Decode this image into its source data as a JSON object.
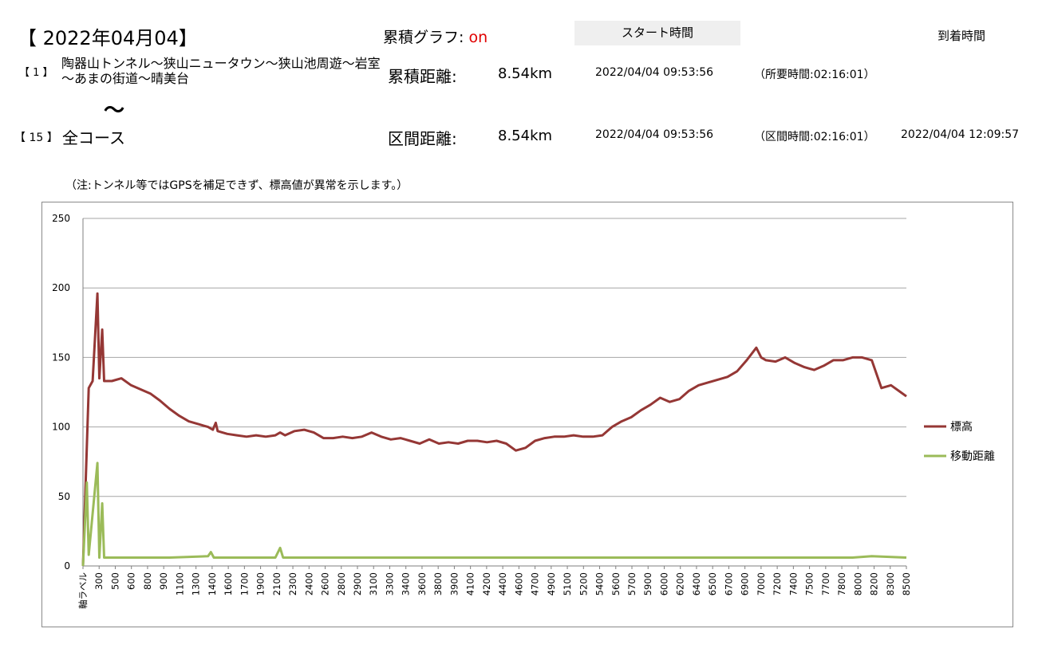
{
  "header": {
    "date": "【 2022年04月04】",
    "graph_mode_label": "累積グラフ: ",
    "graph_mode_value": "on",
    "start_time_label": "スタート時間",
    "arrival_time_label": "到着時間"
  },
  "route": {
    "first_no": "【 1 】",
    "first_name": "陶器山トンネル～狭山ニュータウン～狭山池周遊～岩室～あまの街道～晴美台",
    "tilde": "～",
    "last_no": "【 15 】",
    "last_name": "全コース"
  },
  "cumulative": {
    "label": "累積距離:",
    "distance": "8.54km",
    "start": "2022/04/04 09:53:56",
    "duration": "（所要時間:02:16:01）"
  },
  "section": {
    "label": "区間距離:",
    "distance": "8.54km",
    "start": "2022/04/04 09:53:56",
    "duration": "（区間時間:02:16:01）",
    "arrival": "2022/04/04 12:09:57"
  },
  "note": "（注:トンネル等ではGPSを補足できず、標高値が異常を示します。）",
  "colors": {
    "elevation": "#953735",
    "movement": "#9bbb59",
    "grid": "#a6a6a6",
    "highlight": "#e00000"
  },
  "chart_data": {
    "type": "line",
    "ylim": [
      0,
      250
    ],
    "yticks": [
      "0",
      "50",
      "100",
      "150",
      "200",
      "250"
    ],
    "xticks": [
      "軸ラベル",
      "300",
      "500",
      "600",
      "800",
      "900",
      "1100",
      "1300",
      "1400",
      "1600",
      "1700",
      "1900",
      "2100",
      "2300",
      "2400",
      "2600",
      "2800",
      "2900",
      "3100",
      "3300",
      "3400",
      "3600",
      "3800",
      "3900",
      "4100",
      "4200",
      "4400",
      "4600",
      "4700",
      "4900",
      "5100",
      "5200",
      "5400",
      "5600",
      "5700",
      "5900",
      "6000",
      "6200",
      "6400",
      "6500",
      "6700",
      "6900",
      "7000",
      "7200",
      "7400",
      "7500",
      "7700",
      "7800",
      "8000",
      "8200",
      "8300",
      "8500"
    ],
    "legend_position": "right",
    "grid": true,
    "series": [
      {
        "name": "標高",
        "points": [
          [
            0,
            0
          ],
          [
            60,
            128
          ],
          [
            100,
            133
          ],
          [
            150,
            196
          ],
          [
            170,
            135
          ],
          [
            200,
            170
          ],
          [
            220,
            133
          ],
          [
            300,
            133
          ],
          [
            400,
            135
          ],
          [
            500,
            130
          ],
          [
            600,
            127
          ],
          [
            700,
            124
          ],
          [
            800,
            119
          ],
          [
            900,
            113
          ],
          [
            1000,
            108
          ],
          [
            1100,
            104
          ],
          [
            1200,
            102
          ],
          [
            1300,
            100
          ],
          [
            1350,
            98
          ],
          [
            1380,
            103
          ],
          [
            1400,
            97
          ],
          [
            1500,
            95
          ],
          [
            1600,
            94
          ],
          [
            1700,
            93
          ],
          [
            1800,
            94
          ],
          [
            1900,
            93
          ],
          [
            2000,
            94
          ],
          [
            2050,
            96
          ],
          [
            2100,
            94
          ],
          [
            2200,
            97
          ],
          [
            2300,
            98
          ],
          [
            2400,
            96
          ],
          [
            2500,
            92
          ],
          [
            2600,
            92
          ],
          [
            2700,
            93
          ],
          [
            2800,
            92
          ],
          [
            2900,
            93
          ],
          [
            3000,
            96
          ],
          [
            3100,
            93
          ],
          [
            3200,
            91
          ],
          [
            3300,
            92
          ],
          [
            3400,
            90
          ],
          [
            3500,
            88
          ],
          [
            3600,
            91
          ],
          [
            3700,
            88
          ],
          [
            3800,
            89
          ],
          [
            3900,
            88
          ],
          [
            4000,
            90
          ],
          [
            4100,
            90
          ],
          [
            4200,
            89
          ],
          [
            4300,
            90
          ],
          [
            4400,
            88
          ],
          [
            4500,
            83
          ],
          [
            4600,
            85
          ],
          [
            4700,
            90
          ],
          [
            4800,
            92
          ],
          [
            4900,
            93
          ],
          [
            5000,
            93
          ],
          [
            5100,
            94
          ],
          [
            5200,
            93
          ],
          [
            5300,
            93
          ],
          [
            5400,
            94
          ],
          [
            5500,
            100
          ],
          [
            5600,
            104
          ],
          [
            5700,
            107
          ],
          [
            5800,
            112
          ],
          [
            5900,
            116
          ],
          [
            6000,
            121
          ],
          [
            6100,
            118
          ],
          [
            6200,
            120
          ],
          [
            6300,
            126
          ],
          [
            6400,
            130
          ],
          [
            6500,
            132
          ],
          [
            6600,
            134
          ],
          [
            6700,
            136
          ],
          [
            6800,
            140
          ],
          [
            6900,
            148
          ],
          [
            7000,
            157
          ],
          [
            7050,
            150
          ],
          [
            7100,
            148
          ],
          [
            7200,
            147
          ],
          [
            7300,
            150
          ],
          [
            7400,
            146
          ],
          [
            7500,
            143
          ],
          [
            7600,
            141
          ],
          [
            7700,
            144
          ],
          [
            7800,
            148
          ],
          [
            7900,
            148
          ],
          [
            8000,
            150
          ],
          [
            8100,
            150
          ],
          [
            8200,
            148
          ],
          [
            8300,
            128
          ],
          [
            8400,
            130
          ],
          [
            8500,
            125
          ],
          [
            8560,
            122
          ]
        ]
      },
      {
        "name": "移動距離",
        "points": [
          [
            0,
            0
          ],
          [
            40,
            60
          ],
          [
            60,
            8
          ],
          [
            150,
            74
          ],
          [
            170,
            6
          ],
          [
            200,
            45
          ],
          [
            220,
            6
          ],
          [
            300,
            6
          ],
          [
            700,
            6
          ],
          [
            900,
            6
          ],
          [
            1300,
            7
          ],
          [
            1330,
            10
          ],
          [
            1360,
            6
          ],
          [
            2000,
            6
          ],
          [
            2050,
            13
          ],
          [
            2080,
            6
          ],
          [
            3000,
            6
          ],
          [
            4000,
            6
          ],
          [
            5000,
            6
          ],
          [
            6000,
            6
          ],
          [
            7000,
            6
          ],
          [
            8000,
            6
          ],
          [
            8200,
            7
          ],
          [
            8560,
            6
          ]
        ]
      }
    ]
  }
}
